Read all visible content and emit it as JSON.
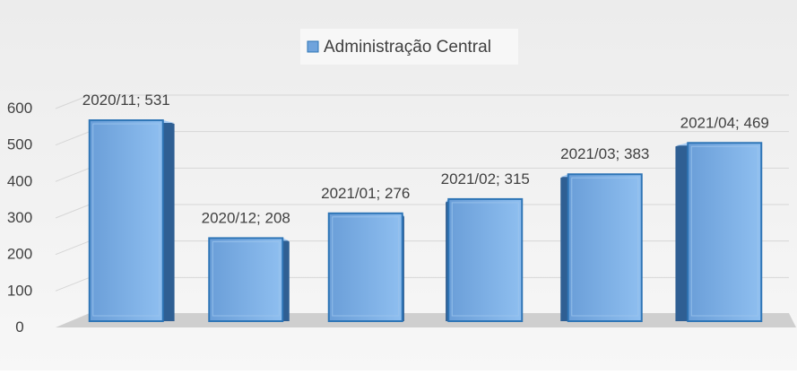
{
  "chart_data": {
    "type": "bar",
    "title": "",
    "xlabel": "",
    "ylabel": "",
    "legend": {
      "position": "top",
      "entries": [
        "Administração Central"
      ]
    },
    "categories": [
      "2020/11",
      "2020/12",
      "2021/01",
      "2021/02",
      "2021/03",
      "2021/04"
    ],
    "series": [
      {
        "name": "Administração Central",
        "values": [
          531,
          208,
          276,
          315,
          383,
          469
        ]
      }
    ],
    "data_labels": [
      "2020/11; 531",
      "2020/12; 208",
      "2021/01; 276",
      "2021/02; 315",
      "2021/03; 383",
      "2021/04; 469"
    ],
    "ylim": [
      0,
      600
    ],
    "yticks": [
      0,
      100,
      200,
      300,
      400,
      500,
      600
    ],
    "grid": true,
    "colors": {
      "bar_front": "#6fa3dc",
      "bar_side": "#2f5f93",
      "bar_edge": "#2e75b6",
      "grid": "#d6d6d6",
      "floor": "#c8c8c8",
      "text": "#404040"
    }
  }
}
